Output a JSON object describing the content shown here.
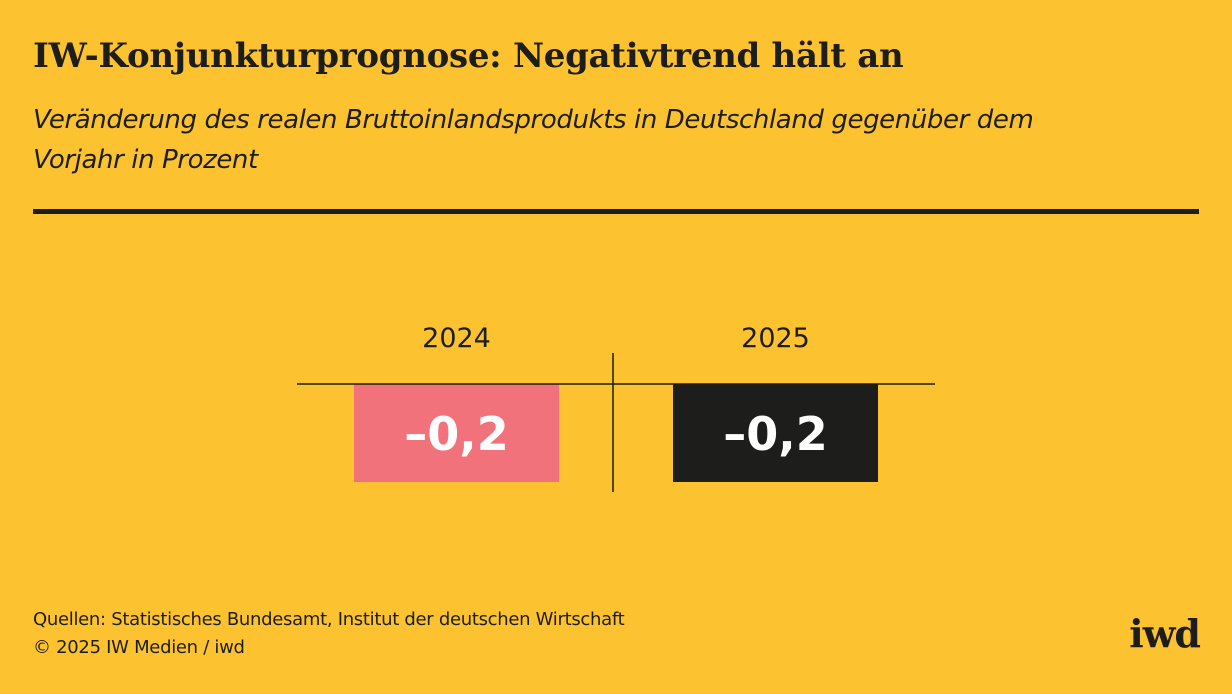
{
  "header": {
    "title": "IW-Konjunkturprognose: Negativtrend hält an",
    "subtitle": "Veränderung des realen Bruttoinlandsprodukts in Deutschland gegenüber dem Vorjahr in Prozent"
  },
  "chart_data": {
    "type": "bar",
    "categories": [
      "2024",
      "2025"
    ],
    "values": [
      -0.2,
      -0.2
    ],
    "value_labels": [
      "–0,2",
      "–0,2"
    ],
    "colors": [
      "#F2727C",
      "#1D1D1B"
    ],
    "title": "",
    "xlabel": "",
    "ylabel": "",
    "grid": false,
    "legend": "none"
  },
  "footer": {
    "sources": "Quellen: Statistisches Bundesamt, Institut der deutschen Wirtschaft",
    "copyright": "© 2025 IW Medien / iwd"
  },
  "logo": {
    "text": "iwd"
  },
  "colors": {
    "background": "#FDC22F",
    "text": "#1D1D1B",
    "bar_2024": "#F2727C",
    "bar_2025": "#1D1D1B",
    "label_on_bar": "#FFFFFF"
  }
}
